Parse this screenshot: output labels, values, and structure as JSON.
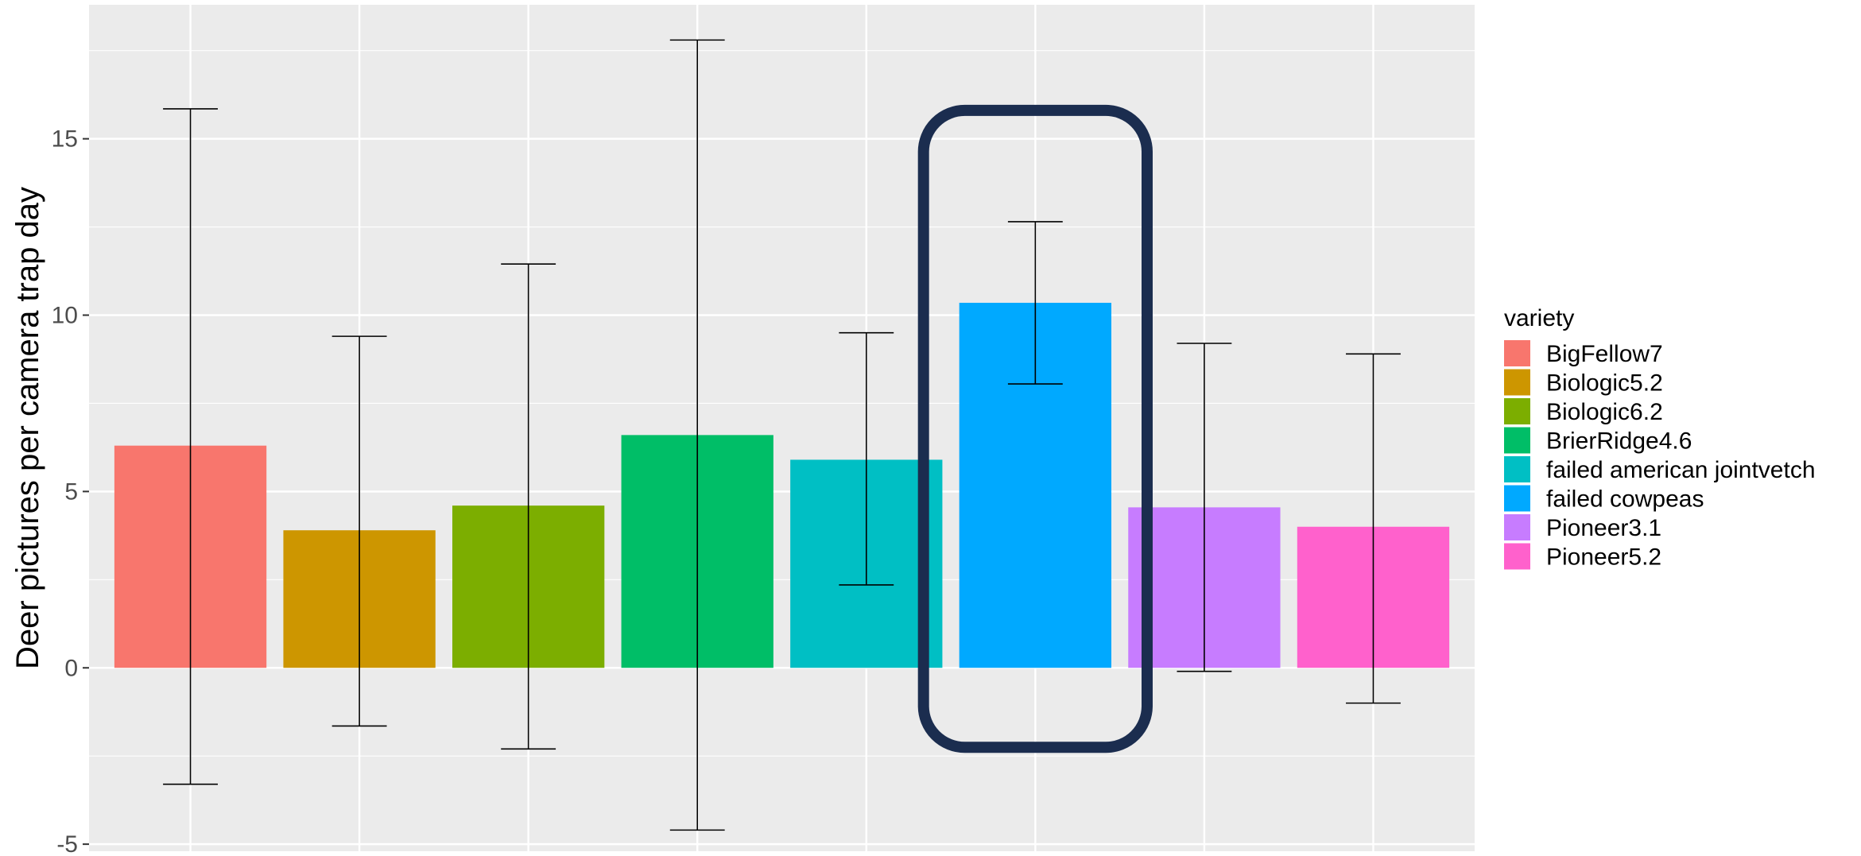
{
  "chart_data": {
    "type": "bar",
    "title": "",
    "xlabel": "",
    "ylabel": "Deer pictures per camera trap day",
    "ylim": [
      -5.2,
      18.8
    ],
    "yticks": [
      -5,
      0,
      5,
      10,
      15
    ],
    "grid": true,
    "legend_position": "right",
    "legend_title": "variety",
    "categories": [
      "BigFellow7",
      "Biologic5.2",
      "Biologic6.2",
      "BrierRidge4.6",
      "failed american jointvetch",
      "failed cowpeas",
      "Pioneer3.1",
      "Pioneer5.2"
    ],
    "values": [
      6.3,
      3.9,
      4.6,
      6.6,
      5.9,
      10.35,
      4.55,
      4.0
    ],
    "error_low": [
      -3.3,
      -1.65,
      -2.3,
      -4.6,
      2.35,
      8.05,
      -0.1,
      -1.0
    ],
    "error_high": [
      15.85,
      9.4,
      11.45,
      17.8,
      9.5,
      12.65,
      9.2,
      8.9
    ],
    "colors": [
      "#F8766D",
      "#CD9600",
      "#7CAE00",
      "#00BE67",
      "#00BFC4",
      "#00A9FF",
      "#C77CFF",
      "#FF61CC"
    ],
    "highlight": {
      "category": "failed cowpeas",
      "color": "#1B2D4F",
      "shape": "rounded-rectangle"
    }
  }
}
